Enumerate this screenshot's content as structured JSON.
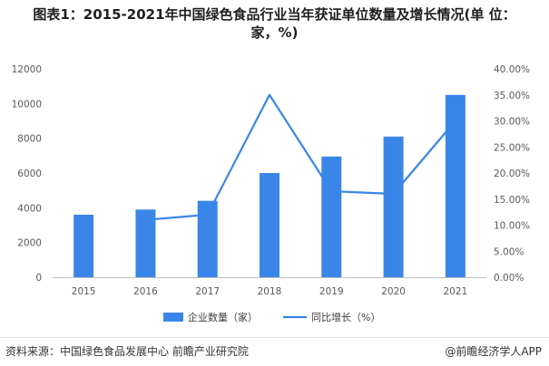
{
  "chart_data": {
    "type": "bar+line",
    "title_line1": "图表1：2015-2021年中国绿色食品行业当年获证单位数量及增长情况(单  位：",
    "title_line2": "家，%)",
    "categories": [
      "2015",
      "2016",
      "2017",
      "2018",
      "2019",
      "2020",
      "2021"
    ],
    "series": [
      {
        "name": "企业数量（家）",
        "type": "bar",
        "axis": "left",
        "color": "#3a86e8",
        "values": [
          3600,
          3900,
          4400,
          6000,
          6950,
          8100,
          10500
        ]
      },
      {
        "name": "同比增长（%）",
        "type": "line",
        "axis": "right",
        "color": "#3a86e8",
        "values": [
          null,
          11.0,
          12.0,
          35.0,
          16.5,
          16.0,
          30.0
        ]
      }
    ],
    "y_left": {
      "min": 0,
      "max": 12000,
      "ticks": [
        "0",
        "2000",
        "4000",
        "6000",
        "8000",
        "10000",
        "12000"
      ]
    },
    "y_right": {
      "min": 0,
      "max": 40,
      "ticks": [
        "0.00%",
        "5.00%",
        "10.00%",
        "15.00%",
        "20.00%",
        "25.00%",
        "30.00%",
        "35.00%",
        "40.00%"
      ]
    },
    "legend_position": "bottom-center"
  },
  "footer": {
    "source": "资料来源：中国绿色食品发展中心 前瞻产业研究院",
    "brand": "@前瞻经济学人APP"
  }
}
